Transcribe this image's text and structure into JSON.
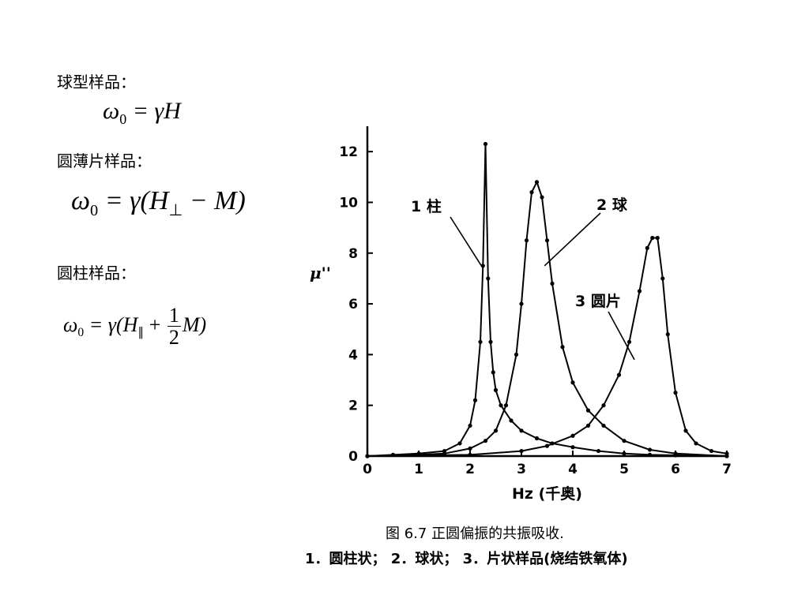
{
  "left": {
    "sphere_label": "球型样品：",
    "sphere_formula": {
      "lhs": "ω",
      "lhs_sub": "0",
      "rhs": "= γH"
    },
    "disk_label": "圆薄片样品：",
    "disk_formula": {
      "lhs": "ω",
      "lhs_sub": "0",
      "rhs_pre": "= γ(H",
      "rhs_sub": "⊥",
      "rhs_post": " − M)"
    },
    "cyl_label": "圆柱样品：",
    "cyl_formula": {
      "lhs": "ω",
      "lhs_sub": "0",
      "rhs_pre": "= γ(H",
      "rhs_sub": "∥",
      "rhs_mid": " + ",
      "frac_num": "1",
      "frac_den": "2",
      "rhs_post": "M)"
    }
  },
  "chart_data": {
    "type": "line",
    "ylabel": "μ''",
    "xlabel": "Hz (千奥)",
    "xlim": [
      0,
      7
    ],
    "ylim": [
      0,
      13
    ],
    "xticks": [
      0,
      1,
      2,
      3,
      4,
      5,
      6,
      7
    ],
    "yticks": [
      0,
      2,
      4,
      6,
      8,
      10,
      12
    ],
    "series": [
      {
        "name": "1 柱",
        "x": [
          0,
          0.5,
          1.0,
          1.5,
          1.8,
          2.0,
          2.1,
          2.2,
          2.25,
          2.3,
          2.35,
          2.4,
          2.45,
          2.5,
          2.6,
          2.8,
          3.0,
          3.3,
          3.6,
          4.0,
          4.5,
          5.0,
          5.5,
          6.0,
          7.0
        ],
        "y": [
          0,
          0.05,
          0.1,
          0.2,
          0.5,
          1.2,
          2.2,
          4.5,
          7.5,
          12.3,
          7.0,
          4.5,
          3.3,
          2.6,
          2.0,
          1.4,
          1.0,
          0.7,
          0.5,
          0.35,
          0.2,
          0.1,
          0.05,
          0.03,
          0
        ]
      },
      {
        "name": "2 球",
        "x": [
          0,
          1.0,
          1.5,
          2.0,
          2.3,
          2.5,
          2.7,
          2.9,
          3.0,
          3.1,
          3.2,
          3.3,
          3.4,
          3.5,
          3.6,
          3.8,
          4.0,
          4.3,
          4.6,
          5.0,
          5.5,
          6.0,
          7.0
        ],
        "y": [
          0,
          0.05,
          0.1,
          0.3,
          0.6,
          1.0,
          2.0,
          4.0,
          6.0,
          8.5,
          10.4,
          10.8,
          10.2,
          8.5,
          6.8,
          4.3,
          2.9,
          1.8,
          1.2,
          0.6,
          0.25,
          0.1,
          0
        ]
      },
      {
        "name": "3 圆片",
        "x": [
          0,
          2.0,
          3.0,
          3.5,
          4.0,
          4.3,
          4.6,
          4.9,
          5.1,
          5.3,
          5.45,
          5.55,
          5.65,
          5.75,
          5.85,
          6.0,
          6.2,
          6.4,
          6.7,
          7.0
        ],
        "y": [
          0,
          0.05,
          0.2,
          0.4,
          0.8,
          1.2,
          2.0,
          3.2,
          4.5,
          6.5,
          8.2,
          8.6,
          8.6,
          7.0,
          4.8,
          2.5,
          1.0,
          0.5,
          0.2,
          0.1
        ]
      }
    ],
    "series_labels": [
      "1 柱",
      "2 球",
      "3 圆片"
    ],
    "caption_line1": "图 6.7    正圆偏振的共振吸收.",
    "caption_line2": "1．圆柱状；  2．球状；  3．片状样品(烧结铁氧体)"
  }
}
